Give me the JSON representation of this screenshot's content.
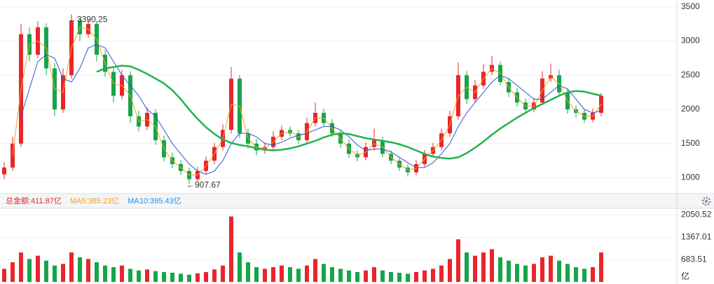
{
  "chart_data": [
    {
      "type": "candlestick",
      "up_color": "#e8262b",
      "down_color": "#15a54a",
      "open": [
        1050,
        1150,
        1500,
        3100,
        2800,
        3200,
        2600,
        2000,
        2500,
        3300,
        3100,
        3250,
        2800,
        2550,
        2200,
        2500,
        1900,
        1750,
        1950,
        1550,
        1300,
        1200,
        1100,
        980,
        1100,
        1250,
        1450,
        1700,
        2450,
        1650,
        1500,
        1400,
        1450,
        1600,
        1700,
        1650,
        1550,
        1800,
        1950,
        1800,
        1650,
        1500,
        1350,
        1300,
        1450,
        1550,
        1350,
        1250,
        1150,
        1080,
        1200,
        1350,
        1450,
        1650,
        1900,
        2500,
        2150,
        2350,
        2550,
        2650,
        2400,
        2250,
        2100,
        2000,
        2100,
        2450,
        2500,
        2250,
        2000,
        1950,
        1850,
        1950
      ],
      "high": [
        1230,
        1600,
        3250,
        3200,
        3290,
        3260,
        2680,
        2600,
        3390.25,
        3340,
        3320,
        3290,
        2870,
        2620,
        2580,
        2560,
        1980,
        2030,
        2000,
        1620,
        1370,
        1260,
        1150,
        1160,
        1310,
        1510,
        1780,
        2620,
        2500,
        1720,
        1570,
        1520,
        1680,
        1760,
        1750,
        1700,
        1880,
        2100,
        2010,
        1860,
        1700,
        1560,
        1400,
        1520,
        1720,
        1600,
        1400,
        1300,
        1200,
        1260,
        1410,
        1510,
        1720,
        1980,
        2690,
        2560,
        2430,
        2660,
        2780,
        2700,
        2460,
        2310,
        2160,
        2170,
        2560,
        2670,
        2580,
        2300,
        2060,
        2000,
        2010,
        2240
      ],
      "low": [
        980,
        1100,
        1450,
        2700,
        2750,
        2500,
        1900,
        1950,
        2450,
        3000,
        3050,
        2700,
        2480,
        2100,
        2150,
        1800,
        1680,
        1700,
        1480,
        1240,
        1140,
        1040,
        907.67,
        950,
        1060,
        1200,
        1400,
        1650,
        1580,
        1430,
        1330,
        1350,
        1400,
        1550,
        1600,
        1500,
        1500,
        1750,
        1750,
        1600,
        1440,
        1290,
        1240,
        1260,
        1400,
        1300,
        1200,
        1100,
        1020,
        1040,
        1160,
        1300,
        1400,
        1600,
        1850,
        2080,
        2100,
        2300,
        2500,
        2350,
        2180,
        2040,
        1940,
        1960,
        2060,
        2400,
        2200,
        1940,
        1880,
        1800,
        1810,
        1900
      ],
      "close": [
        1150,
        1500,
        3100,
        2800,
        3200,
        2600,
        2000,
        2500,
        3300,
        3100,
        3250,
        2800,
        2550,
        2200,
        2500,
        1900,
        1750,
        1950,
        1550,
        1300,
        1200,
        1100,
        980,
        1100,
        1250,
        1450,
        1700,
        2450,
        1650,
        1500,
        1400,
        1450,
        1600,
        1700,
        1650,
        1550,
        1800,
        1950,
        1800,
        1650,
        1500,
        1350,
        1300,
        1450,
        1550,
        1350,
        1250,
        1150,
        1080,
        1200,
        1350,
        1450,
        1650,
        1900,
        2500,
        2150,
        2350,
        2550,
        2650,
        2400,
        2250,
        2100,
        2000,
        2100,
        2450,
        2500,
        2250,
        2000,
        1950,
        1850,
        1950,
        2200
      ],
      "lines": [
        {
          "color": "#f2a31b",
          "values": [
            null,
            1325,
            2300,
            2950,
            3000,
            2900,
            2300,
            2250,
            2900,
            3200,
            3175,
            3025,
            2675,
            2375,
            2350,
            2200,
            1825,
            1850,
            1750,
            1425,
            1250,
            1150,
            1040,
            1040,
            1175,
            1350,
            1575,
            2075,
            2050,
            1575,
            1450,
            1425,
            1525,
            1650,
            1675,
            1600,
            1675,
            1875,
            1875,
            1725,
            1575,
            1425,
            1325,
            1375,
            1500,
            1450,
            1300,
            1200,
            1115,
            1140,
            1275,
            1400,
            1550,
            1775,
            2200,
            2325,
            2250,
            2450,
            2600,
            2525,
            2325,
            2175,
            2050,
            2050,
            2275,
            2475,
            2375,
            2125,
            1975,
            1900,
            1900,
            2075
          ]
        },
        {
          "color": "#2f56c9",
          "values": [
            null,
            null,
            1900,
            2300,
            2700,
            2800,
            2750,
            2450,
            2400,
            2600,
            2900,
            2950,
            2900,
            2700,
            2500,
            2350,
            2200,
            2000,
            1900,
            1700,
            1500,
            1350,
            1200,
            1100,
            1050,
            1100,
            1250,
            1500,
            1650,
            1650,
            1600,
            1500,
            1480,
            1520,
            1580,
            1620,
            1650,
            1700,
            1750,
            1750,
            1700,
            1600,
            1480,
            1400,
            1420,
            1420,
            1380,
            1300,
            1220,
            1150,
            1150,
            1220,
            1350,
            1500,
            1750,
            1950,
            2100,
            2250,
            2400,
            2500,
            2450,
            2350,
            2250,
            2150,
            2150,
            2250,
            2350,
            2300,
            2150,
            2000,
            1950,
            1980
          ]
        },
        {
          "color": "#22b34c",
          "values": [
            null,
            null,
            null,
            null,
            null,
            null,
            null,
            null,
            null,
            null,
            null,
            2550,
            2600,
            2620,
            2640,
            2630,
            2580,
            2520,
            2450,
            2380,
            2280,
            2150,
            2000,
            1860,
            1740,
            1640,
            1560,
            1510,
            1480,
            1460,
            1430,
            1410,
            1400,
            1410,
            1430,
            1460,
            1500,
            1540,
            1590,
            1630,
            1650,
            1640,
            1610,
            1580,
            1560,
            1540,
            1520,
            1490,
            1450,
            1400,
            1350,
            1310,
            1290,
            1280,
            1300,
            1360,
            1440,
            1530,
            1630,
            1720,
            1800,
            1880,
            1950,
            2020,
            2080,
            2140,
            2200,
            2250,
            2270,
            2260,
            2230,
            2200
          ]
        }
      ],
      "annotations": {
        "max": "←3390.25",
        "min": "←907.67"
      },
      "ylim": [
        780,
        3600
      ],
      "yticks": [
        1000,
        1500,
        2000,
        2500,
        3000,
        3500
      ],
      "grid": true
    },
    {
      "type": "bar",
      "legend": [
        {
          "text": "总金额:411.87亿",
          "color": "#e8262b"
        },
        {
          "text": "MA5:385.23亿",
          "color": "#f2a31b"
        },
        {
          "text": "MA10:395.43亿",
          "color": "#2f8fd8"
        }
      ],
      "values": [
        400,
        600,
        900,
        700,
        800,
        650,
        500,
        550,
        900,
        750,
        700,
        600,
        500,
        450,
        500,
        400,
        350,
        380,
        330,
        300,
        280,
        250,
        220,
        260,
        300,
        380,
        500,
        2000,
        900,
        600,
        450,
        400,
        450,
        500,
        450,
        400,
        500,
        700,
        550,
        450,
        400,
        350,
        300,
        350,
        450,
        350,
        300,
        280,
        250,
        300,
        350,
        400,
        500,
        700,
        1300,
        900,
        800,
        900,
        1000,
        750,
        650,
        550,
        500,
        550,
        750,
        800,
        650,
        550,
        450,
        400,
        450,
        900
      ],
      "unit": "亿",
      "ylim": [
        0,
        2250
      ],
      "yticks": [
        683.51,
        1367.01,
        2050.52
      ]
    }
  ]
}
